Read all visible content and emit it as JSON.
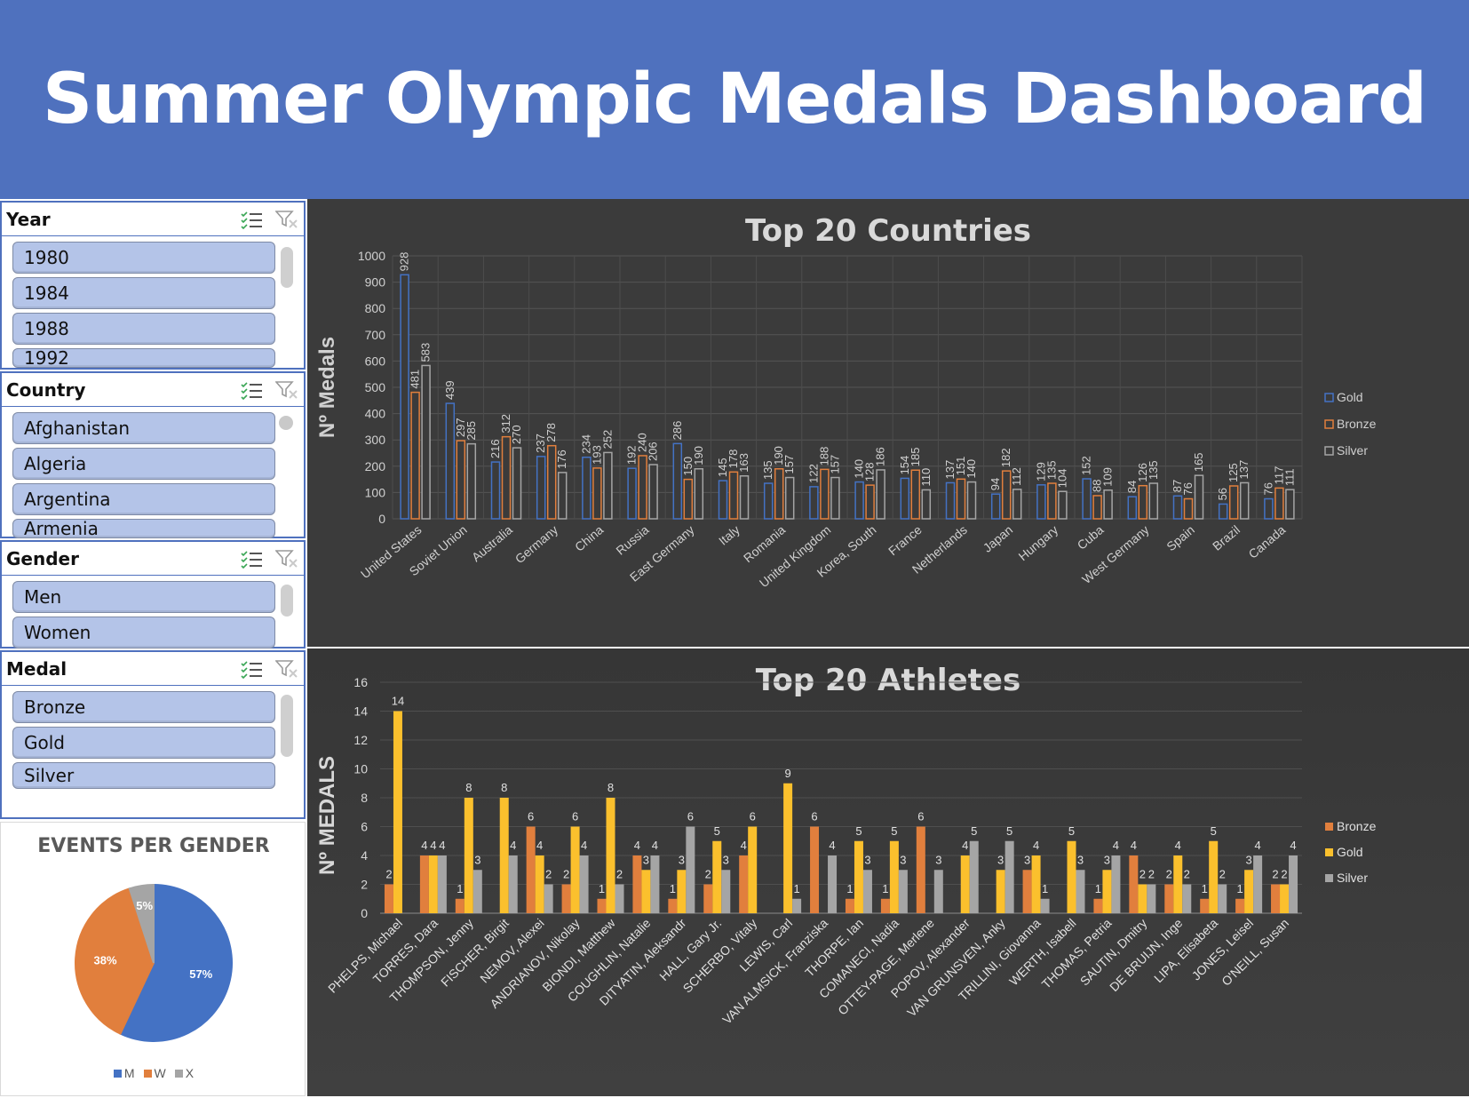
{
  "header": {
    "title": "Summer Olympic Medals Dashboard"
  },
  "slicers": {
    "year": {
      "title": "Year",
      "items": [
        "1980",
        "1984",
        "1988",
        "1992"
      ]
    },
    "country": {
      "title": "Country",
      "items": [
        "Afghanistan",
        "Algeria",
        "Argentina",
        "Armenia"
      ]
    },
    "gender": {
      "title": "Gender",
      "items": [
        "Men",
        "Women"
      ]
    },
    "medal": {
      "title": "Medal",
      "items": [
        "Bronze",
        "Gold",
        "Silver"
      ]
    }
  },
  "colors": {
    "header_bg": "#4f71be",
    "slicer_item": "#b4c4e8",
    "gold": "#f5c242",
    "bronze": "#e17f3d",
    "silver": "#a5a5a5",
    "men": "#4472c4"
  },
  "chart_data": [
    {
      "type": "bar",
      "title": "Top 20 Countries",
      "ylabel": "Nº Medals",
      "ylim": [
        0,
        1000
      ],
      "yticks": [
        0,
        100,
        200,
        300,
        400,
        500,
        600,
        700,
        800,
        900,
        1000
      ],
      "legend_position": "right",
      "style": "outlined bars",
      "categories": [
        "United States",
        "Soviet Union",
        "Australia",
        "Germany",
        "China",
        "Russia",
        "East Germany",
        "Italy",
        "Romania",
        "United Kingdom",
        "Korea, South",
        "France",
        "Netherlands",
        "Japan",
        "Hungary",
        "Cuba",
        "West Germany",
        "Spain",
        "Brazil",
        "Canada"
      ],
      "series": [
        {
          "name": "Gold",
          "color": "#4472c4",
          "values": [
            928,
            439,
            216,
            237,
            234,
            192,
            286,
            145,
            135,
            122,
            140,
            154,
            137,
            94,
            129,
            152,
            84,
            87,
            56,
            76
          ]
        },
        {
          "name": "Bronze",
          "color": "#e17f3d",
          "values": [
            481,
            297,
            312,
            278,
            193,
            240,
            150,
            178,
            190,
            188,
            128,
            185,
            151,
            182,
            135,
            88,
            126,
            76,
            125,
            117
          ]
        },
        {
          "name": "Silver",
          "color": "#a5a5a5",
          "values": [
            583,
            285,
            270,
            176,
            252,
            206,
            190,
            163,
            157,
            157,
            186,
            110,
            140,
            112,
            104,
            109,
            135,
            165,
            137,
            111
          ]
        }
      ]
    },
    {
      "type": "bar",
      "title": "Top 20 Athletes",
      "ylabel": "Nº MEDALS",
      "ylim": [
        0,
        16
      ],
      "yticks": [
        0,
        2,
        4,
        6,
        8,
        10,
        12,
        14,
        16
      ],
      "legend_position": "right",
      "categories": [
        "PHELPS, Michael",
        "TORRES, Dara",
        "THOMPSON, Jenny",
        "FISCHER, Birgit",
        "NEMOV, Alexei",
        "ANDRIANOV, Nikolay",
        "BIONDI, Matthew",
        "COUGHLIN, Natalie",
        "DITYATIN, Aleksandr",
        "HALL, Gary Jr.",
        "SCHERBO, Vitaly",
        "LEWIS, Carl",
        "VAN ALMSICK, Franziska",
        "THORPE, Ian",
        "COMANECI, Nadia",
        "OTTEY-PAGE, Merlene",
        "POPOV, Alexander",
        "VAN GRUNSVEN, Anky",
        "TRILLINI, Giovanna",
        "WERTH, Isabell",
        "THOMAS, Petria",
        "SAUTIN, Dmitry",
        "DE BRUIJN, Inge",
        "LIPA, Elisabeta",
        "JONES, Leisel",
        "O'NEILL, Susan"
      ],
      "series": [
        {
          "name": "Bronze",
          "color": "#e17f3d",
          "values": [
            2,
            4,
            1,
            0,
            6,
            2,
            1,
            4,
            1,
            2,
            4,
            0,
            6,
            1,
            1,
            6,
            0,
            0,
            3,
            0,
            1,
            4,
            2,
            1,
            1,
            2
          ]
        },
        {
          "name": "Gold",
          "color": "#fbc02d",
          "values": [
            14,
            4,
            8,
            8,
            4,
            6,
            8,
            3,
            3,
            5,
            6,
            9,
            0,
            5,
            5,
            0,
            4,
            3,
            4,
            5,
            3,
            2,
            4,
            5,
            3,
            2
          ]
        },
        {
          "name": "Silver",
          "color": "#a5a5a5",
          "values": [
            0,
            4,
            3,
            4,
            2,
            4,
            2,
            4,
            6,
            3,
            0,
            1,
            4,
            3,
            3,
            3,
            5,
            5,
            1,
            3,
            4,
            2,
            2,
            2,
            4,
            4
          ]
        }
      ]
    },
    {
      "type": "pie",
      "title": "EVENTS PER GENDER",
      "categories": [
        "M",
        "W",
        "X"
      ],
      "values": [
        57,
        38,
        5
      ],
      "labels": [
        "57%",
        "38%",
        "5%"
      ],
      "colors": [
        "#4472c4",
        "#e17f3d",
        "#a5a5a5"
      ],
      "legend_position": "bottom"
    }
  ]
}
